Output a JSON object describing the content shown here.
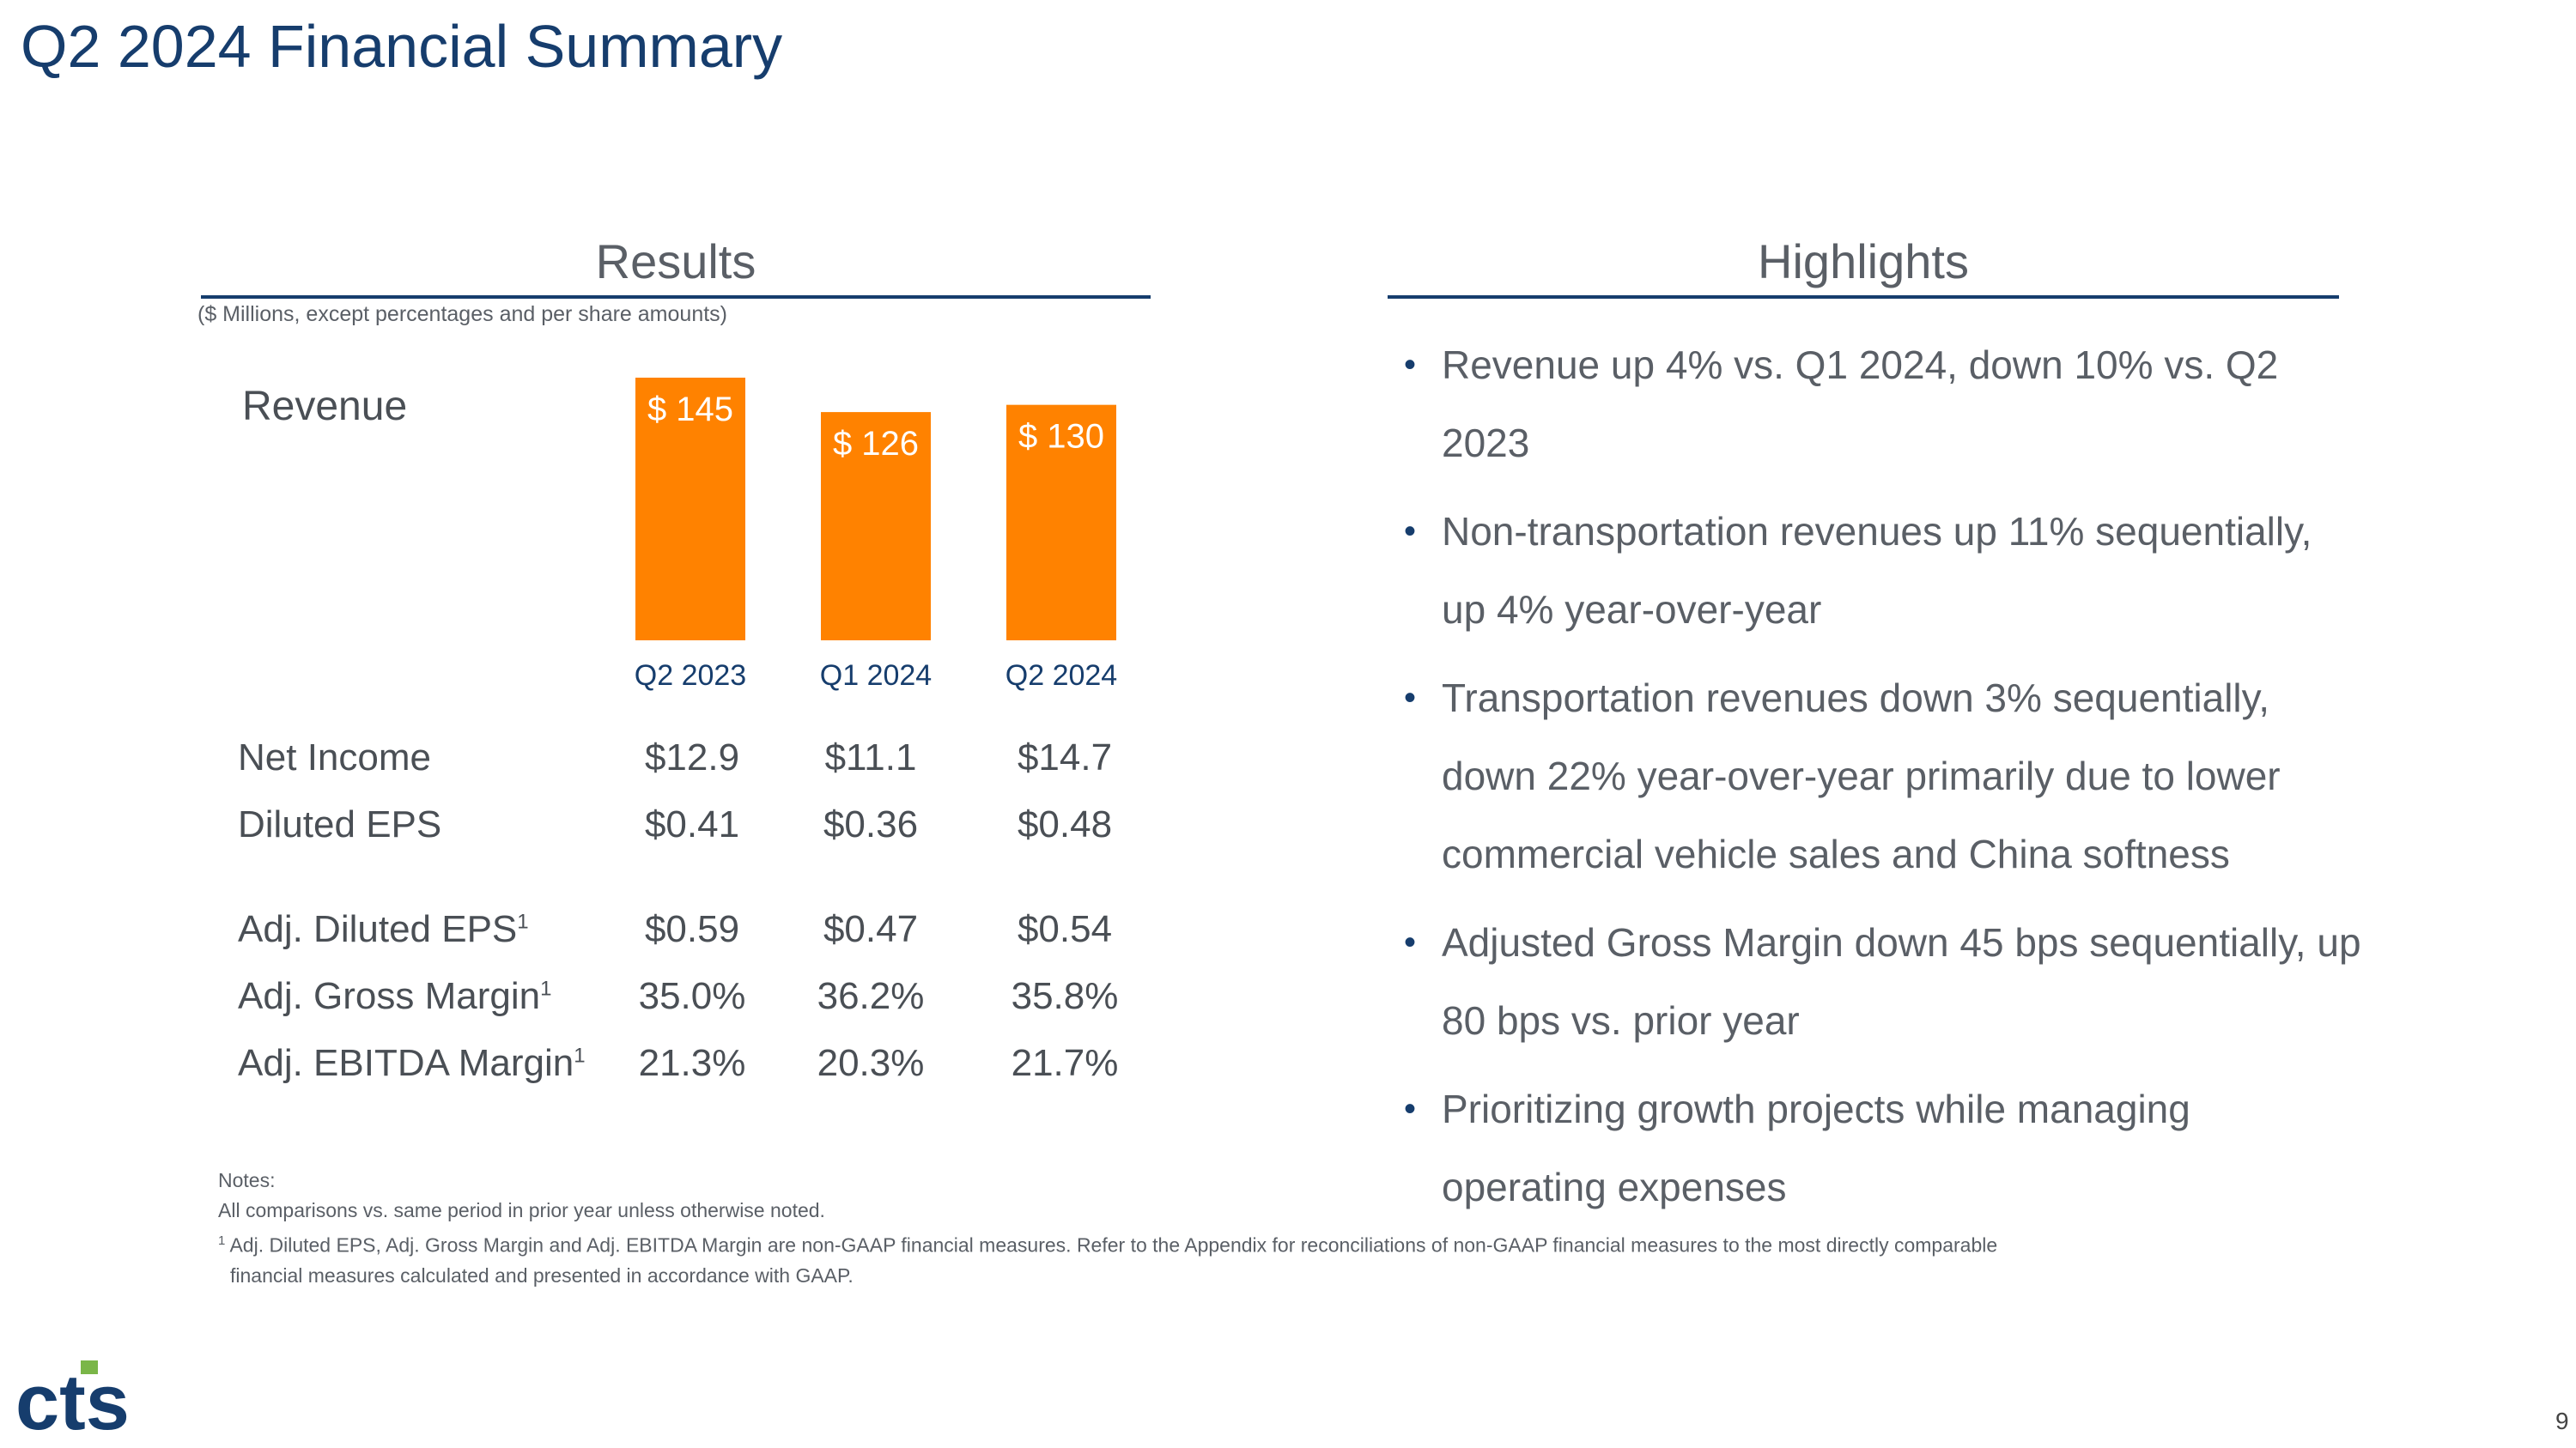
{
  "slide": {
    "title": "Q2 2024 Financial Summary",
    "page_number": "9"
  },
  "results": {
    "heading": "Results",
    "units_note": "($ Millions, except percentages and per share amounts)",
    "revenue_label": "Revenue",
    "rows": [
      {
        "label": "Net Income",
        "sup": "",
        "values": [
          "$12.9",
          "$11.1",
          "$14.7"
        ]
      },
      {
        "label": "Diluted EPS",
        "sup": "",
        "values": [
          "$0.41",
          "$0.36",
          "$0.48"
        ]
      },
      {
        "label": "Adj. Diluted EPS",
        "sup": "1",
        "values": [
          "$0.59",
          "$0.47",
          "$0.54"
        ]
      },
      {
        "label": "Adj. Gross Margin",
        "sup": "1",
        "values": [
          "35.0%",
          "36.2%",
          "35.8%"
        ]
      },
      {
        "label": "Adj. EBITDA Margin",
        "sup": "1",
        "values": [
          "21.3%",
          "20.3%",
          "21.7%"
        ]
      }
    ]
  },
  "chart_data": {
    "type": "bar",
    "title": "Revenue",
    "categories": [
      "Q2 2023",
      "Q1 2024",
      "Q2 2024"
    ],
    "values": [
      145,
      126,
      130
    ],
    "value_labels": [
      "$ 145",
      "$ 126",
      "$ 130"
    ],
    "ylim": [
      0,
      145
    ],
    "bar_color": "#ff8200",
    "category_color": "#163d6d"
  },
  "highlights": {
    "heading": "Highlights",
    "bullets": [
      "Revenue up 4% vs. Q1 2024, down 10% vs. Q2 2023",
      "Non-transportation revenues up 11% sequentially, up 4% year-over-year",
      "Transportation revenues down 3% sequentially, down 22% year-over-year primarily due to lower commercial vehicle sales and China softness",
      "Adjusted Gross Margin down 45 bps sequentially, up 80 bps vs. prior year",
      "Prioritizing growth projects while managing operating expenses"
    ]
  },
  "notes": {
    "heading": "Notes:",
    "line1": "All comparisons vs. same period in prior year unless otherwise noted.",
    "footnote_mark": "1",
    "line2": " Adj. Diluted EPS, Adj. Gross Margin and Adj. EBITDA Margin are non-GAAP financial measures. Refer to the Appendix for reconciliations of non-GAAP financial measures to the most directly comparable",
    "line3": "financial measures calculated and presented in accordance with GAAP."
  },
  "logo": {
    "text": "cts",
    "color": "#163d6d",
    "accent": "#7ab648"
  },
  "colors": {
    "title": "#163d6d",
    "rule": "#163d6d",
    "text": "#5a5f66"
  }
}
